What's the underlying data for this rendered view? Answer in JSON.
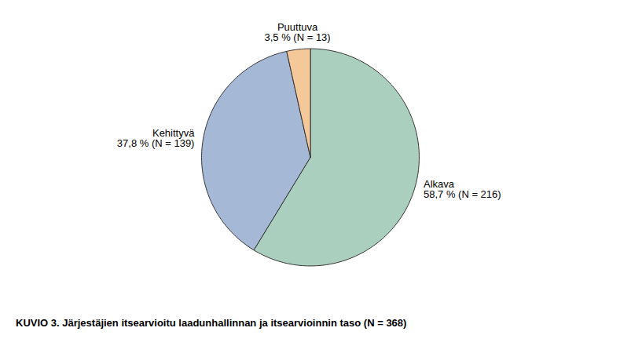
{
  "chart_data": {
    "type": "pie",
    "title": "KUVIO 3. Järjestäjien itsearvioitu laadunhallinnan ja itsearvioinnin taso (N = 368)",
    "categories": [
      "Alkava",
      "Kehittyvä",
      "Puuttuva"
    ],
    "values": [
      58.7,
      37.8,
      3.5
    ],
    "value_labels": [
      "58,7 % (N = 216)",
      "37,8 % (N = 139)",
      "3,5 % (N = 13)"
    ],
    "colors": [
      "#aacfbe",
      "#a5b8d5",
      "#f5c89a"
    ],
    "data_labels": true
  }
}
